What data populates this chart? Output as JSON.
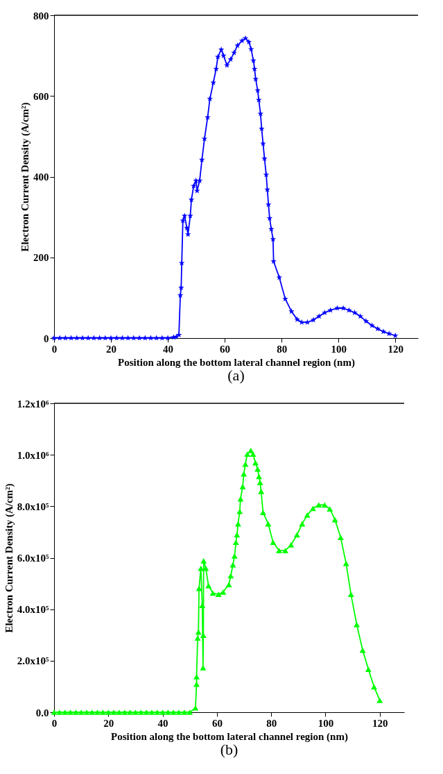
{
  "chart_data": [
    {
      "type": "line",
      "title": "(a)",
      "xlabel": "Position along the bottom lateral channel region (nm)",
      "ylabel": "Electron Current Density (A/cm²)",
      "marker": "star",
      "line_style": "solid",
      "grid": false,
      "legend": false,
      "xlim": [
        0,
        128
      ],
      "xticks": [
        0,
        20,
        40,
        60,
        80,
        100,
        120
      ],
      "ylim": [
        0,
        800
      ],
      "yticks": [
        0,
        200,
        400,
        600,
        800
      ],
      "series": [
        {
          "color": "#0000ff",
          "x": [
            0,
            2,
            4,
            6,
            8,
            10,
            12,
            14,
            16,
            18,
            20,
            22,
            24,
            26,
            28,
            30,
            32,
            34,
            36,
            38,
            40,
            42,
            43,
            43.9,
            44.4,
            44.7,
            44.9,
            45.3,
            45.9,
            46.7,
            47.1,
            47.9,
            48.3,
            49.1,
            49.9,
            50.3,
            51.2,
            52,
            52.9,
            54,
            54.8,
            56,
            57,
            57.6,
            58.8,
            59.6,
            60.8,
            62.1,
            63.3,
            64.5,
            66.1,
            67.3,
            68.5,
            69.3,
            70.1,
            70.5,
            70.9,
            71.6,
            72,
            72.6,
            73,
            73.5,
            74,
            74.6,
            75,
            75.4,
            75.8,
            76.4,
            77,
            77.2,
            79.2,
            81.3,
            83.5,
            85.5,
            87.1,
            89.1,
            91.2,
            93.2,
            95.2,
            97.2,
            99.6,
            101.7,
            103.7,
            105.7,
            107.7,
            109.7,
            111.8,
            113.8,
            115.8,
            117.8,
            120
          ],
          "values": [
            0,
            0,
            0,
            0,
            0,
            0,
            0,
            0,
            0,
            0,
            0,
            0,
            0,
            0,
            0,
            0,
            0,
            0,
            0,
            0,
            0,
            2,
            3,
            8,
            106,
            125,
            186,
            291,
            303,
            273,
            257,
            303,
            343,
            377,
            390,
            365,
            390,
            442,
            494,
            547,
            593,
            633,
            667,
            697,
            715,
            700,
            676,
            691,
            707,
            725,
            737,
            743,
            734,
            716,
            688,
            667,
            642,
            614,
            590,
            556,
            519,
            482,
            445,
            405,
            368,
            331,
            297,
            270,
            245,
            190,
            150,
            97,
            66,
            46,
            39,
            39,
            45,
            54,
            63,
            69,
            74,
            74,
            69,
            63,
            54,
            42,
            31,
            23,
            16,
            11,
            6
          ]
        }
      ]
    },
    {
      "type": "line",
      "title": "(b)",
      "xlabel": "Position along the bottom lateral channel region (nm)",
      "ylabel": "Electron Current Density (A/cm²)",
      "marker": "triangle",
      "line_style": "solid",
      "grid": false,
      "legend": false,
      "xlim": [
        0,
        129
      ],
      "xticks": [
        0,
        20,
        40,
        60,
        80,
        100,
        120
      ],
      "ylim": [
        0,
        1200000
      ],
      "yticks": [
        {
          "value": 0,
          "label": "0.0"
        },
        {
          "value": 200000,
          "label": "2.0x10⁵"
        },
        {
          "value": 400000,
          "label": "4.0x10⁵"
        },
        {
          "value": 600000,
          "label": "6.0x10⁵"
        },
        {
          "value": 800000,
          "label": "8.0x10⁵"
        },
        {
          "value": 1000000,
          "label": "1.0x10⁶"
        },
        {
          "value": 1200000,
          "label": "1.2x10⁶"
        }
      ],
      "series": [
        {
          "color": "#00ff00",
          "x": [
            0,
            2,
            4,
            6,
            8,
            10,
            12,
            14,
            16,
            18,
            20,
            22,
            24,
            26,
            28,
            30,
            32,
            34,
            36,
            38,
            40,
            42,
            44,
            46,
            48,
            50,
            52.1,
            52.5,
            52.5,
            52.9,
            53.2,
            53.4,
            54.1,
            54.6,
            54.9,
            55.0,
            55.1,
            55.9,
            56.9,
            58.5,
            60.6,
            62.3,
            64.4,
            65.1,
            65.9,
            66.5,
            67,
            67.4,
            67.8,
            68.4,
            68.7,
            69.5,
            69.9,
            70.5,
            71.2,
            72.5,
            73.3,
            74.2,
            75,
            75.5,
            75.9,
            76.3,
            77,
            78.9,
            80.7,
            82.9,
            85.2,
            87.3,
            89.5,
            91.4,
            93.3,
            95.4,
            97.5,
            99.7,
            101.6,
            103.5,
            105.6,
            107.6,
            109.4,
            111.5,
            113.7,
            115.8,
            117.9,
            120
          ],
          "values": [
            0,
            0,
            0,
            0,
            0,
            0,
            0,
            0,
            0,
            0,
            0,
            0,
            0,
            0,
            0,
            0,
            0,
            0,
            0,
            0,
            0,
            0,
            0,
            0,
            0,
            0,
            17000,
            109000,
            138000,
            288000,
            312000,
            481000,
            559000,
            415000,
            173000,
            299000,
            588000,
            559000,
            492000,
            463000,
            458000,
            467000,
            496000,
            530000,
            573000,
            607000,
            660000,
            689000,
            732000,
            780000,
            829000,
            877000,
            926000,
            964000,
            1003000,
            1017000,
            1003000,
            969000,
            945000,
            916000,
            892000,
            858000,
            776000,
            732000,
            660000,
            628000,
            628000,
            650000,
            689000,
            732000,
            766000,
            792000,
            805000,
            805000,
            790000,
            748000,
            679000,
            578000,
            458000,
            341000,
            241000,
            167000,
            99000,
            46000
          ]
        }
      ]
    }
  ]
}
